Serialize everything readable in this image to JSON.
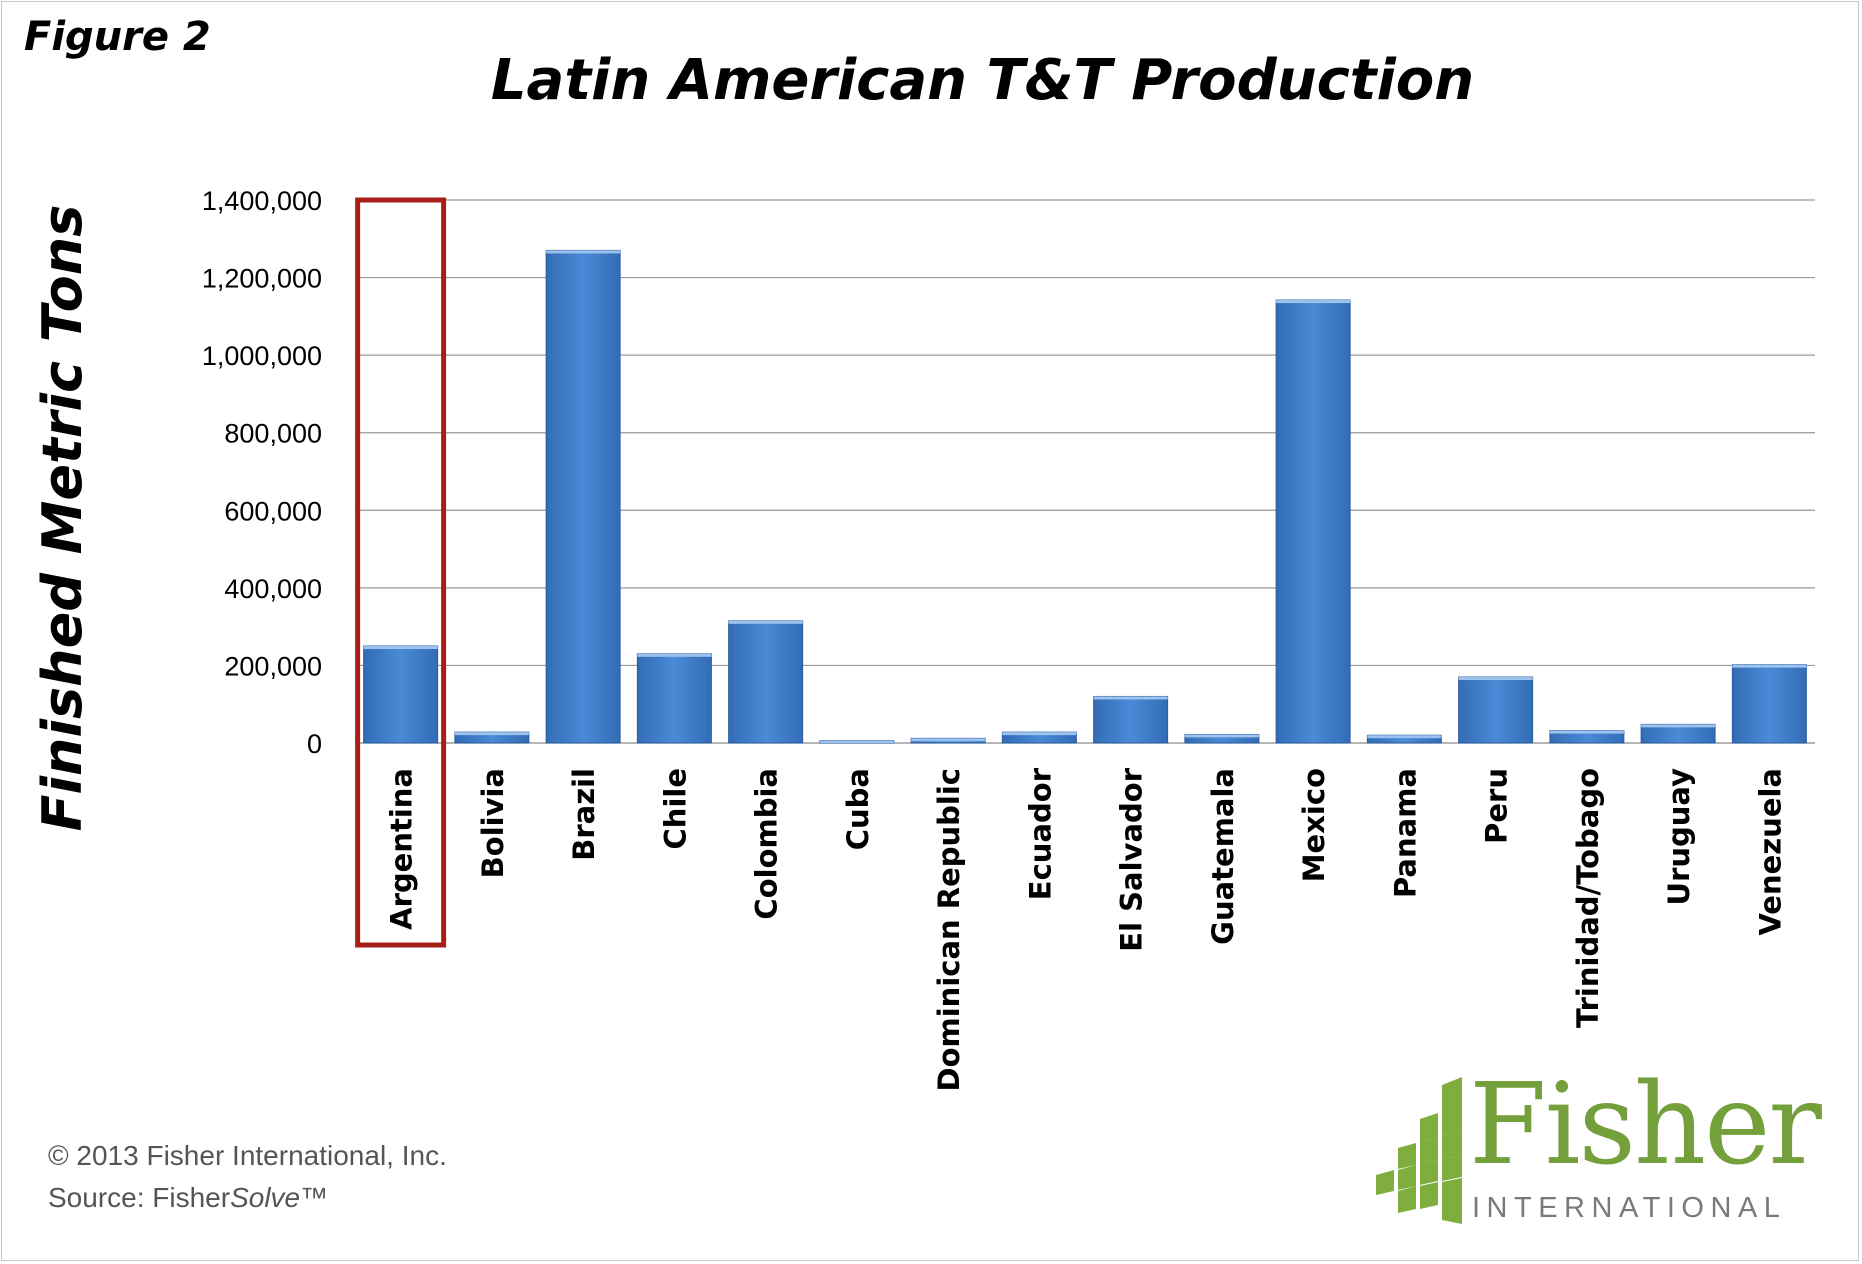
{
  "figure_label": "Figure 2",
  "chart_data": {
    "type": "bar",
    "title": "Latin American T&T Production",
    "xlabel": "",
    "ylabel": "Finished Metric Tons",
    "ylim": [
      0,
      1400000
    ],
    "yticks": [
      0,
      200000,
      400000,
      600000,
      800000,
      1000000,
      1200000,
      1400000
    ],
    "ytick_labels": [
      "0",
      "200,000",
      "400,000",
      "600,000",
      "800,000",
      "1,000,000",
      "1,200,000",
      "1,400,000"
    ],
    "categories": [
      "Argentina",
      "Bolivia",
      "Brazil",
      "Chile",
      "Colombia",
      "Cuba",
      "Dominican Republic",
      "Ecuador",
      "El Salvador",
      "Guatemala",
      "Mexico",
      "Panama",
      "Peru",
      "Trinidad/Tobago",
      "Uruguay",
      "Venezuela"
    ],
    "values": [
      250000,
      28000,
      1270000,
      230000,
      315000,
      6000,
      12000,
      28000,
      120000,
      22000,
      1142000,
      20000,
      170000,
      32000,
      48000,
      202000
    ],
    "grid": true,
    "bar_color": "#3f7fcf",
    "highlight": {
      "category": "Argentina",
      "color": "#a61e17"
    }
  },
  "footer": {
    "copyright": "© 2013 Fisher International, Inc.",
    "source_prefix": "Source: Fisher",
    "source_italic": "Solve",
    "source_suffix": "™"
  },
  "logo": {
    "name": "Fisher",
    "subtitle": "INTERNATIONAL",
    "name_color": "#74a03c",
    "mark_color": "#7fae3e"
  }
}
